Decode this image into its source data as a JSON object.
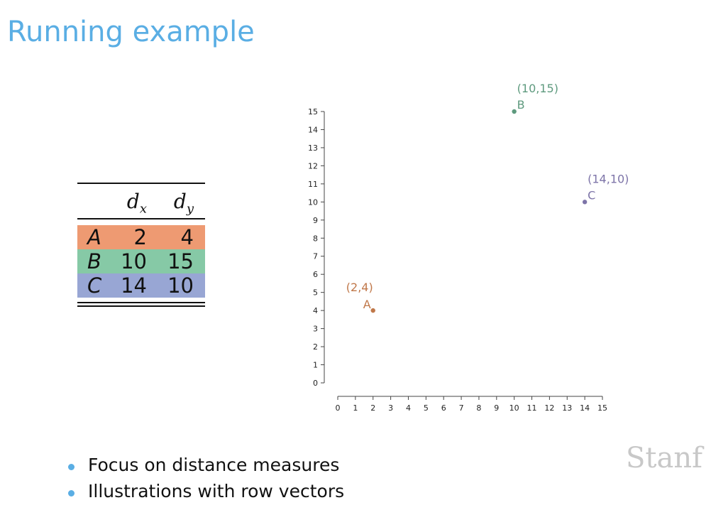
{
  "slide": {
    "title": "Running example",
    "watermark": "Stanf"
  },
  "table": {
    "columns": [
      "d",
      "d"
    ],
    "column_subscripts": [
      "x",
      "y"
    ],
    "rows": [
      {
        "label": "A",
        "dx": "2",
        "dy": "4",
        "color": "#ee9a72"
      },
      {
        "label": "B",
        "dx": "10",
        "dy": "15",
        "color": "#86c9a6"
      },
      {
        "label": "C",
        "dx": "14",
        "dy": "10",
        "color": "#98a6d4"
      }
    ]
  },
  "bullets": [
    "Focus on distance measures",
    "Illustrations with row vectors"
  ],
  "chart_data": {
    "type": "scatter",
    "title": "",
    "xlabel": "",
    "ylabel": "",
    "xlim": [
      0,
      15
    ],
    "ylim": [
      0,
      15
    ],
    "x_ticks": [
      "0",
      "1",
      "2",
      "3",
      "4",
      "5",
      "6",
      "7",
      "8",
      "9",
      "10",
      "11",
      "12",
      "13",
      "14",
      "15"
    ],
    "y_ticks": [
      "0",
      "1",
      "2",
      "3",
      "4",
      "5",
      "6",
      "7",
      "8",
      "9",
      "10",
      "11",
      "12",
      "13",
      "14",
      "15"
    ],
    "grid": false,
    "points": [
      {
        "name": "A",
        "x": 2,
        "y": 4,
        "coord_label": "(2,4)",
        "color": "#c0784a"
      },
      {
        "name": "B",
        "x": 10,
        "y": 15,
        "coord_label": "(10,15)",
        "color": "#5e9a7e"
      },
      {
        "name": "C",
        "x": 14,
        "y": 10,
        "coord_label": "(14,10)",
        "color": "#7d74a8"
      }
    ]
  }
}
